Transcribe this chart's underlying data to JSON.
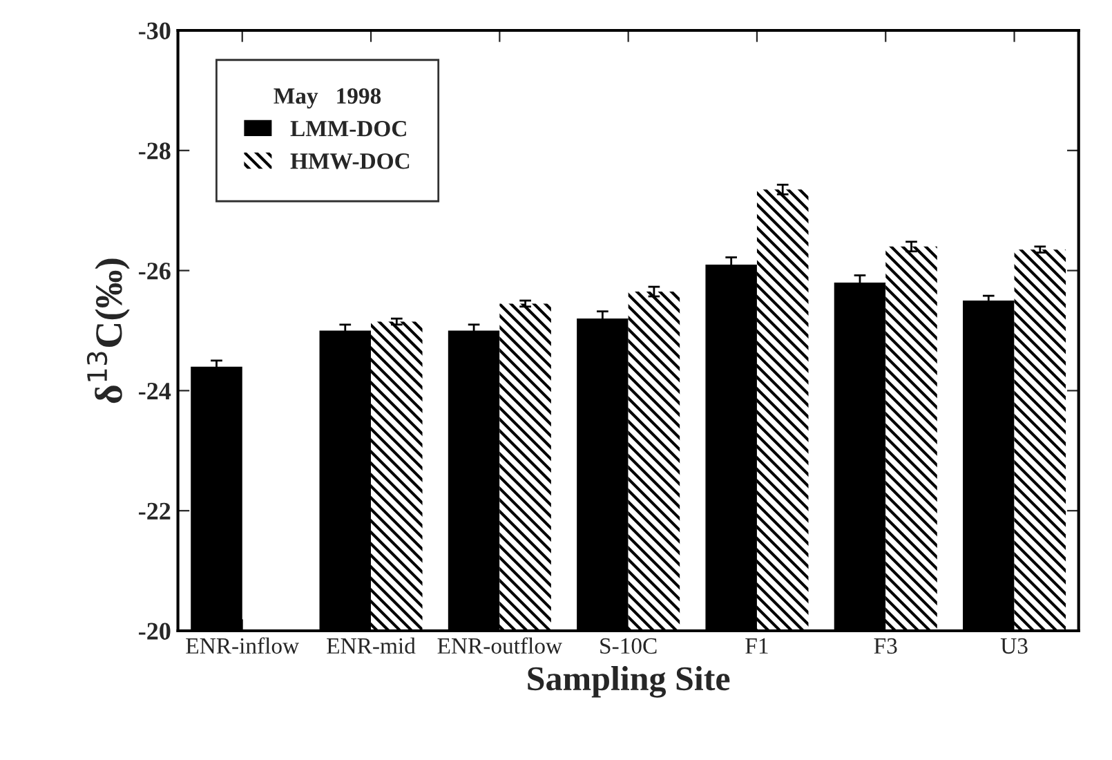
{
  "chart_data": {
    "type": "bar",
    "xlabel": "Sampling Site",
    "ylabel": "δ$^{13}$C(‰)",
    "legend_title": "May   1998",
    "categories": [
      "ENR-inflow",
      "ENR-mid",
      "ENR-outflow",
      "S-10C",
      "F1",
      "F3",
      "U3"
    ],
    "series": [
      {
        "name": "LMM-DOC",
        "color": "#000000",
        "values": [
          -24.4,
          -25.0,
          -25.0,
          -25.2,
          -26.1,
          -25.8,
          -25.5
        ],
        "errors": [
          0.1,
          0.1,
          0.1,
          0.12,
          0.12,
          0.12,
          0.08
        ]
      },
      {
        "name": "HMW-DOC",
        "color": "#ffffff",
        "values": [
          null,
          -25.15,
          -25.45,
          -25.65,
          -27.35,
          -26.4,
          -26.35
        ],
        "errors": [
          null,
          0.05,
          0.05,
          0.08,
          0.08,
          0.08,
          0.05
        ]
      }
    ],
    "ylim": [
      -20,
      -30
    ],
    "yticks": [
      -20,
      -22,
      -24,
      -26,
      -28,
      -30
    ],
    "legend": "top left",
    "grid": false
  }
}
